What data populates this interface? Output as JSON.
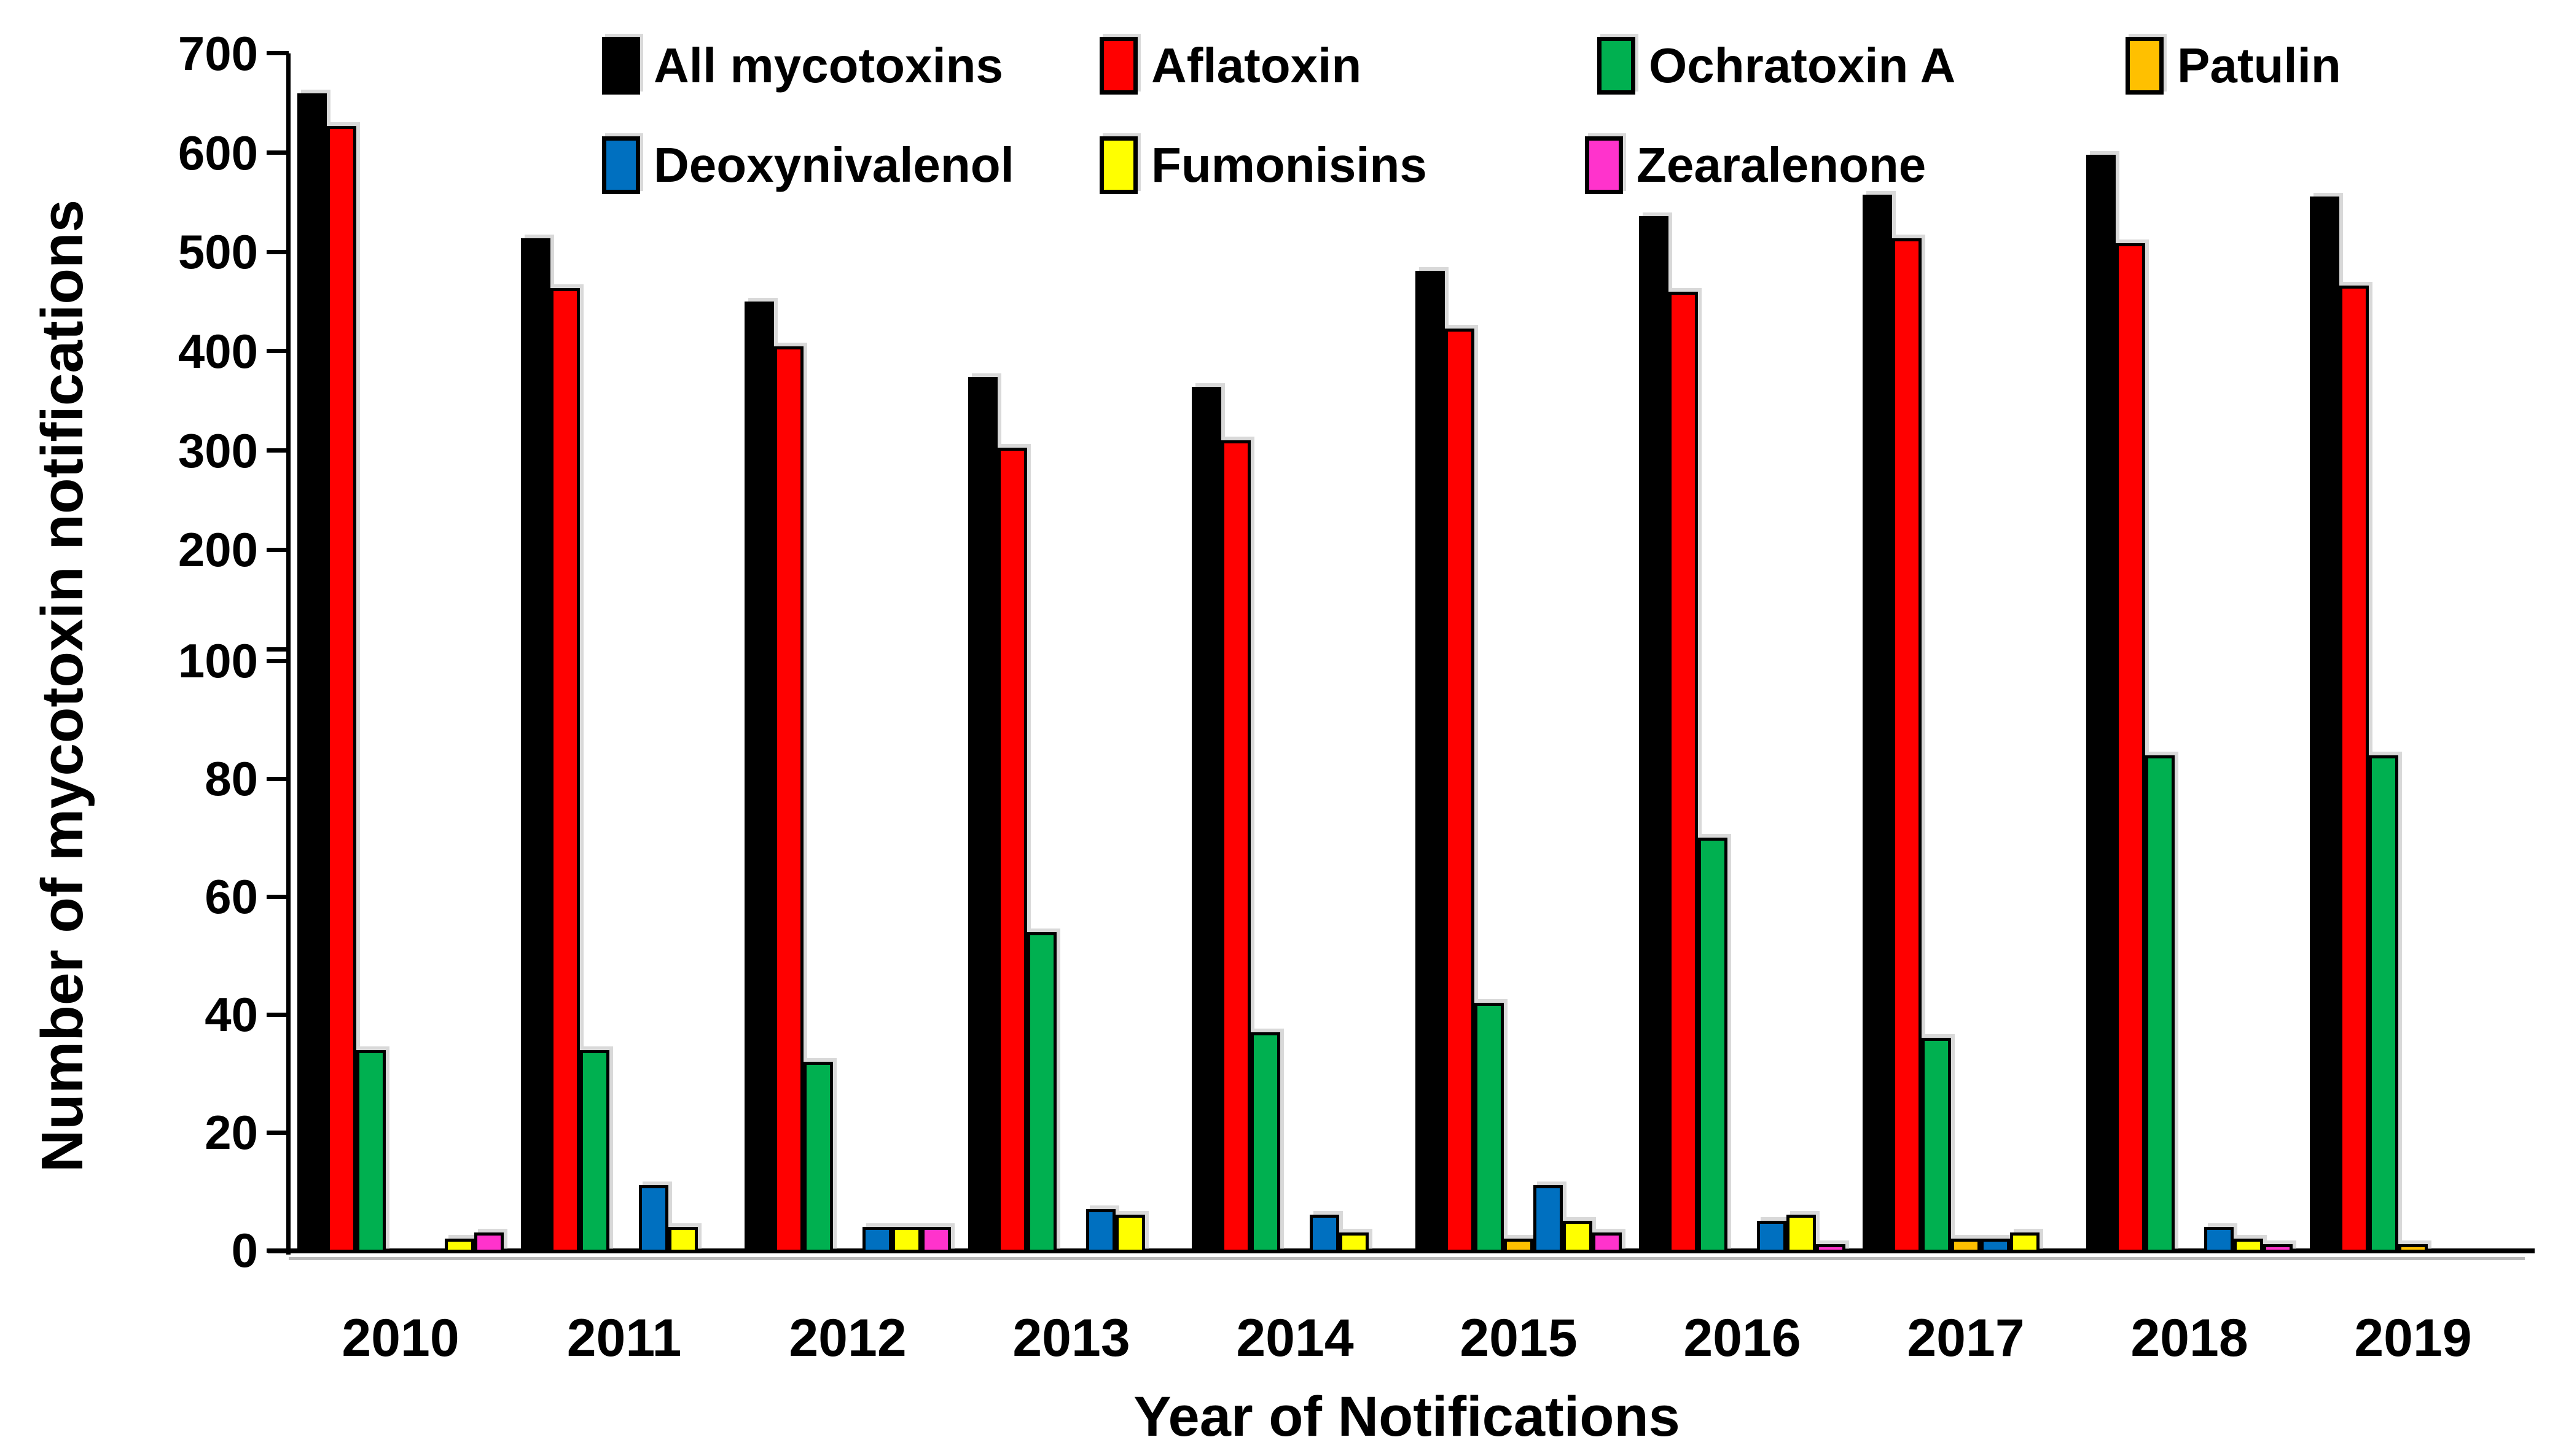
{
  "figure": {
    "ylabel": "Number of mycotoxin notifications",
    "xlabel": "Year of Notifications"
  },
  "chart_data": {
    "type": "bar",
    "title": "",
    "xlabel": "Year of Notifications",
    "ylabel": "Number of mycotoxin notifications",
    "categories": [
      "2010",
      "2011",
      "2012",
      "2013",
      "2014",
      "2015",
      "2016",
      "2017",
      "2018",
      "2019"
    ],
    "series": [
      {
        "name": "All mycotoxins",
        "color": "#000000",
        "values": [
          660,
          514,
          450,
          374,
          364,
          481,
          536,
          558,
          598,
          556
        ]
      },
      {
        "name": "Aflatoxin",
        "color": "#FF0000",
        "values": [
          627,
          464,
          405,
          303,
          310,
          423,
          460,
          514,
          509,
          466
        ]
      },
      {
        "name": "Ochratoxin A",
        "color": "#00B050",
        "values": [
          34,
          34,
          32,
          54,
          37,
          42,
          70,
          36,
          84,
          84
        ]
      },
      {
        "name": "Patulin",
        "color": "#FFC000",
        "values": [
          0,
          0,
          0,
          0,
          0,
          2,
          0,
          2,
          0,
          1
        ]
      },
      {
        "name": "Deoxynivalenol",
        "color": "#0070C0",
        "values": [
          0,
          11,
          4,
          7,
          6,
          11,
          5,
          2,
          4,
          0
        ]
      },
      {
        "name": "Fumonisins",
        "color": "#FFFF00",
        "values": [
          2,
          4,
          4,
          6,
          3,
          5,
          6,
          3,
          2,
          0
        ]
      },
      {
        "name": "Zearalenone",
        "color": "#FF33CC",
        "values": [
          3,
          0,
          4,
          0,
          0,
          3,
          1,
          0,
          1,
          0
        ]
      }
    ],
    "y_axis": {
      "broken": true,
      "lower_segment": {
        "min": 0,
        "max": 100,
        "ticks": [
          0,
          20,
          40,
          60,
          80,
          100
        ],
        "tick_labels": [
          "0",
          "20",
          "40",
          "60",
          "80",
          "100"
        ]
      },
      "upper_segment": {
        "min": 100,
        "max": 700,
        "ticks": [
          100,
          200,
          300,
          400,
          500,
          600,
          700
        ],
        "tick_labels": [
          "100",
          "200",
          "300",
          "400",
          "500",
          "600",
          "700"
        ]
      }
    },
    "legend_position": "top-inside",
    "legend_rows": [
      [
        "All mycotoxins",
        "Aflatoxin",
        "Ochratoxin A",
        "Patulin"
      ],
      [
        "Deoxynivalenol",
        "Fumonisins",
        "Zearalenone"
      ]
    ],
    "grid": false,
    "xlim_categories": 10,
    "bar_border_color": "#000000",
    "background_color": "#FFFFFF"
  }
}
